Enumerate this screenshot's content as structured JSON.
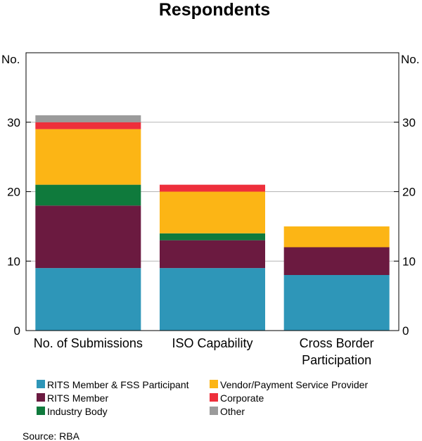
{
  "chart_data": {
    "type": "bar",
    "stacked": true,
    "title": "Respondents",
    "ylabel_left": "No.",
    "ylabel_right": "No.",
    "ylim": [
      0,
      40
    ],
    "yticks": [
      0,
      10,
      20,
      30
    ],
    "categories": [
      "No. of Submissions",
      "ISO Capability",
      "Cross Border\nParticipation"
    ],
    "series": [
      {
        "name": "RITS Member & FSS Participant",
        "color": "#2e96b8",
        "values": [
          9,
          9,
          8
        ]
      },
      {
        "name": "RITS Member",
        "color": "#6b1a40",
        "values": [
          9,
          4,
          4
        ]
      },
      {
        "name": "Industry Body",
        "color": "#0f7a3c",
        "values": [
          3,
          1,
          0
        ]
      },
      {
        "name": "Vendor/Payment Service Provider",
        "color": "#fcb515",
        "values": [
          8,
          6,
          3
        ]
      },
      {
        "name": "Corporate",
        "color": "#ee2f3b",
        "values": [
          1,
          1,
          0
        ]
      },
      {
        "name": "Other",
        "color": "#9b9b9b",
        "values": [
          1,
          0,
          0
        ]
      }
    ],
    "source": "Source:   RBA"
  }
}
